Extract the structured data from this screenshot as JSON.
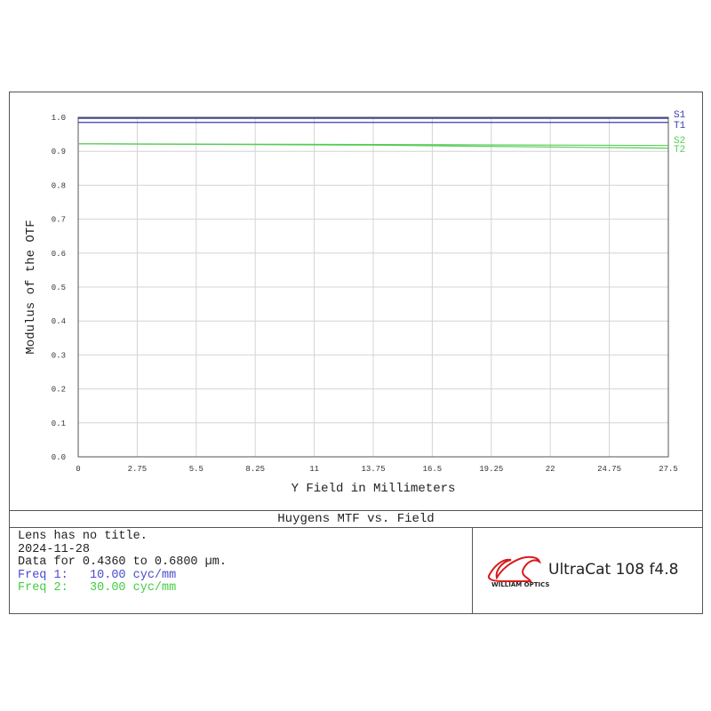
{
  "chart_data": {
    "type": "line",
    "title": "Huygens MTF vs. Field",
    "xlabel": "Y Field in Millimeters",
    "ylabel": "Modulus of the OTF",
    "xlim": [
      0,
      27.5
    ],
    "ylim": [
      0,
      1.0
    ],
    "xticks": [
      "0",
      "2.75",
      "5.5",
      "8.25",
      "11",
      "13.75",
      "16.5",
      "19.25",
      "22",
      "24.75",
      "27.5"
    ],
    "yticks": [
      "0.0",
      "0.1",
      "0.2",
      "0.3",
      "0.4",
      "0.5",
      "0.6",
      "0.7",
      "0.8",
      "0.9",
      "1.0"
    ],
    "grid": true,
    "series": [
      {
        "name": "S1",
        "color": "#3b3bb0",
        "x": [
          0,
          27.5
        ],
        "y": [
          0.997,
          0.997
        ]
      },
      {
        "name": "T1",
        "color": "#3b3bb0",
        "x": [
          0,
          27.5
        ],
        "y": [
          0.985,
          0.985
        ]
      },
      {
        "name": "S2",
        "color": "#55cc55",
        "x": [
          0,
          13.75,
          27.5
        ],
        "y": [
          0.922,
          0.92,
          0.917
        ]
      },
      {
        "name": "T2",
        "color": "#55cc55",
        "x": [
          0,
          13.75,
          27.5
        ],
        "y": [
          0.922,
          0.918,
          0.909
        ]
      }
    ]
  },
  "info": {
    "line1": "Lens has no title.",
    "line2": "2024-11-28",
    "line3": "Data for 0.4360 to 0.6800 µm.",
    "freq1": "Freq 1:   10.00 cyc/mm",
    "freq2": "Freq 2:   30.00 cyc/mm",
    "freq1_color": "#4a4ad0",
    "freq2_color": "#44cc44"
  },
  "logo": {
    "text": "WILLIAM OPTICS",
    "color": "#d81b1b"
  },
  "brand": "UltraCat 108 f4.8"
}
